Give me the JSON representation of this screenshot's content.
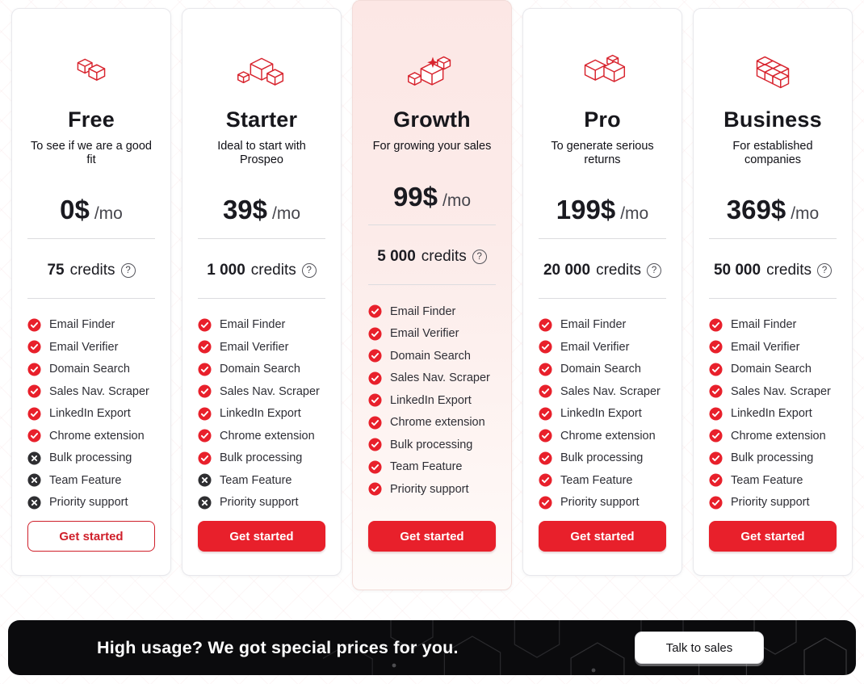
{
  "colors": {
    "accent_red": "#e8202b",
    "icon_stroke_red": "#d8242e",
    "cross_dark": "#2e2e31",
    "highlight_pink": "#fce7e5",
    "banner_black": "#0b0b0d"
  },
  "ui": {
    "help_symbol": "?",
    "credits_unit": "credits"
  },
  "plans": [
    {
      "name": "Free",
      "tagline": "To see if we are a good fit",
      "price": "0$",
      "period": "/mo",
      "credits": "75",
      "credits_unit": "credits",
      "icon": "two-cubes-icon",
      "highlighted": false,
      "button_style": "outline",
      "cta": "Get started",
      "features": [
        {
          "label": "Email Finder",
          "included": true
        },
        {
          "label": "Email Verifier",
          "included": true
        },
        {
          "label": "Domain Search",
          "included": true
        },
        {
          "label": "Sales Nav. Scraper",
          "included": true
        },
        {
          "label": "LinkedIn Export",
          "included": true
        },
        {
          "label": "Chrome extension",
          "included": true
        },
        {
          "label": "Bulk processing",
          "included": false
        },
        {
          "label": "Team Feature",
          "included": false
        },
        {
          "label": "Priority support",
          "included": false
        }
      ]
    },
    {
      "name": "Starter",
      "tagline": "Ideal to start with Prospeo",
      "price": "39$",
      "period": "/mo",
      "credits": "1 000",
      "credits_unit": "credits",
      "icon": "three-cubes-icon",
      "highlighted": false,
      "button_style": "solid",
      "cta": "Get started",
      "features": [
        {
          "label": "Email Finder",
          "included": true
        },
        {
          "label": "Email Verifier",
          "included": true
        },
        {
          "label": "Domain Search",
          "included": true
        },
        {
          "label": "Sales Nav. Scraper",
          "included": true
        },
        {
          "label": "LinkedIn Export",
          "included": true
        },
        {
          "label": "Chrome extension",
          "included": true
        },
        {
          "label": "Bulk processing",
          "included": true
        },
        {
          "label": "Team Feature",
          "included": false
        },
        {
          "label": "Priority support",
          "included": false
        }
      ]
    },
    {
      "name": "Growth",
      "tagline": "For growing your sales",
      "price": "99$",
      "period": "/mo",
      "credits": "5 000",
      "credits_unit": "credits",
      "icon": "sparkle-cubes-icon",
      "highlighted": true,
      "button_style": "solid",
      "cta": "Get started",
      "features": [
        {
          "label": "Email Finder",
          "included": true
        },
        {
          "label": "Email Verifier",
          "included": true
        },
        {
          "label": "Domain Search",
          "included": true
        },
        {
          "label": "Sales Nav. Scraper",
          "included": true
        },
        {
          "label": "LinkedIn Export",
          "included": true
        },
        {
          "label": "Chrome extension",
          "included": true
        },
        {
          "label": "Bulk processing",
          "included": true
        },
        {
          "label": "Team Feature",
          "included": true
        },
        {
          "label": "Priority support",
          "included": true
        }
      ]
    },
    {
      "name": "Pro",
      "tagline": "To generate serious returns",
      "price": "199$",
      "period": "/mo",
      "credits": "20 000",
      "credits_unit": "credits",
      "icon": "stacked-cubes-icon",
      "highlighted": false,
      "button_style": "solid",
      "cta": "Get started",
      "features": [
        {
          "label": "Email Finder",
          "included": true
        },
        {
          "label": "Email Verifier",
          "included": true
        },
        {
          "label": "Domain Search",
          "included": true
        },
        {
          "label": "Sales Nav. Scraper",
          "included": true
        },
        {
          "label": "LinkedIn Export",
          "included": true
        },
        {
          "label": "Chrome extension",
          "included": true
        },
        {
          "label": "Bulk processing",
          "included": true
        },
        {
          "label": "Team Feature",
          "included": true
        },
        {
          "label": "Priority support",
          "included": true
        }
      ]
    },
    {
      "name": "Business",
      "tagline": "For established companies",
      "price": "369$",
      "period": "/mo",
      "credits": "50 000",
      "credits_unit": "credits",
      "icon": "block-cubes-icon",
      "highlighted": false,
      "button_style": "solid",
      "cta": "Get started",
      "features": [
        {
          "label": "Email Finder",
          "included": true
        },
        {
          "label": "Email Verifier",
          "included": true
        },
        {
          "label": "Domain Search",
          "included": true
        },
        {
          "label": "Sales Nav. Scraper",
          "included": true
        },
        {
          "label": "LinkedIn Export",
          "included": true
        },
        {
          "label": "Chrome extension",
          "included": true
        },
        {
          "label": "Bulk processing",
          "included": true
        },
        {
          "label": "Team Feature",
          "included": true
        },
        {
          "label": "Priority support",
          "included": true
        }
      ]
    }
  ],
  "banner": {
    "text": "High usage? We got special prices for you.",
    "cta": "Talk to sales"
  }
}
